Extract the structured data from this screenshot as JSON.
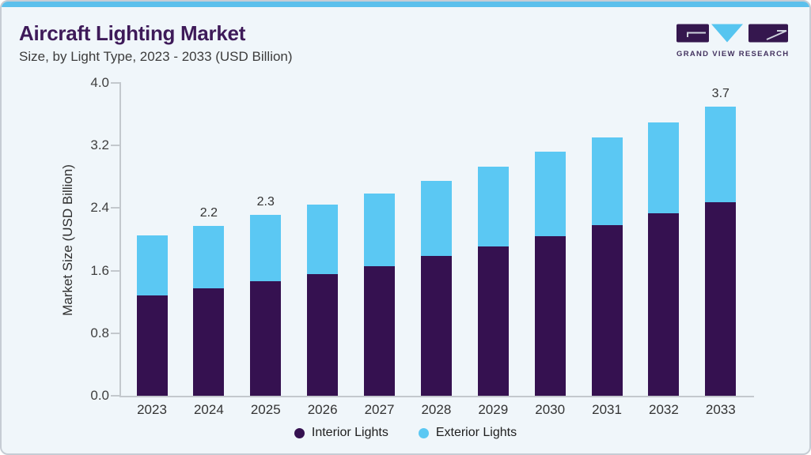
{
  "header": {
    "title": "Aircraft Lighting Market",
    "subtitle": "Size, by Light Type, 2023 - 2033 (USD Billion)"
  },
  "logo": {
    "text": "GRAND VIEW RESEARCH"
  },
  "chart_data": {
    "type": "bar",
    "stacked": true,
    "title": "Aircraft Lighting Market Size, by Light Type, 2023 - 2033 (USD Billion)",
    "ylabel": "Market Size (USD Billion)",
    "xlabel": "",
    "categories": [
      "2023",
      "2024",
      "2025",
      "2026",
      "2027",
      "2028",
      "2029",
      "2030",
      "2031",
      "2032",
      "2033"
    ],
    "series": [
      {
        "name": "Interior Lights",
        "color": "#351150",
        "values": [
          1.28,
          1.37,
          1.46,
          1.56,
          1.66,
          1.79,
          1.91,
          2.04,
          2.18,
          2.33,
          2.47
        ]
      },
      {
        "name": "Exterior Lights",
        "color": "#5bc8f3",
        "values": [
          0.77,
          0.8,
          0.85,
          0.88,
          0.93,
          0.96,
          1.02,
          1.08,
          1.12,
          1.16,
          1.23
        ]
      }
    ],
    "totals": [
      2.05,
      2.17,
      2.31,
      2.44,
      2.59,
      2.75,
      2.93,
      3.12,
      3.3,
      3.49,
      3.7
    ],
    "bar_labels": [
      "",
      "2.2",
      "2.3",
      "",
      "",
      "",
      "",
      "",
      "",
      "",
      "3.7"
    ],
    "yticks": [
      0.0,
      0.8,
      1.6,
      2.4,
      3.2,
      4.0
    ],
    "ylim": [
      0,
      4.0
    ],
    "grid": false,
    "legend_position": "bottom"
  },
  "colors": {
    "card_background": "#f0f6fa",
    "top_accent": "#5cc0ec",
    "card_border": "#c6ccd4",
    "title": "#3e1a59",
    "subtitle_text": "#3c3c3c",
    "axis": "#c3c8cd",
    "tick_text": "#3f3f3f",
    "interior_bar": "#351150",
    "exterior_bar": "#5bc8f3",
    "logo_purple": "#35174e",
    "logo_blue": "#56c5f0",
    "logo_text": "#43325f"
  }
}
